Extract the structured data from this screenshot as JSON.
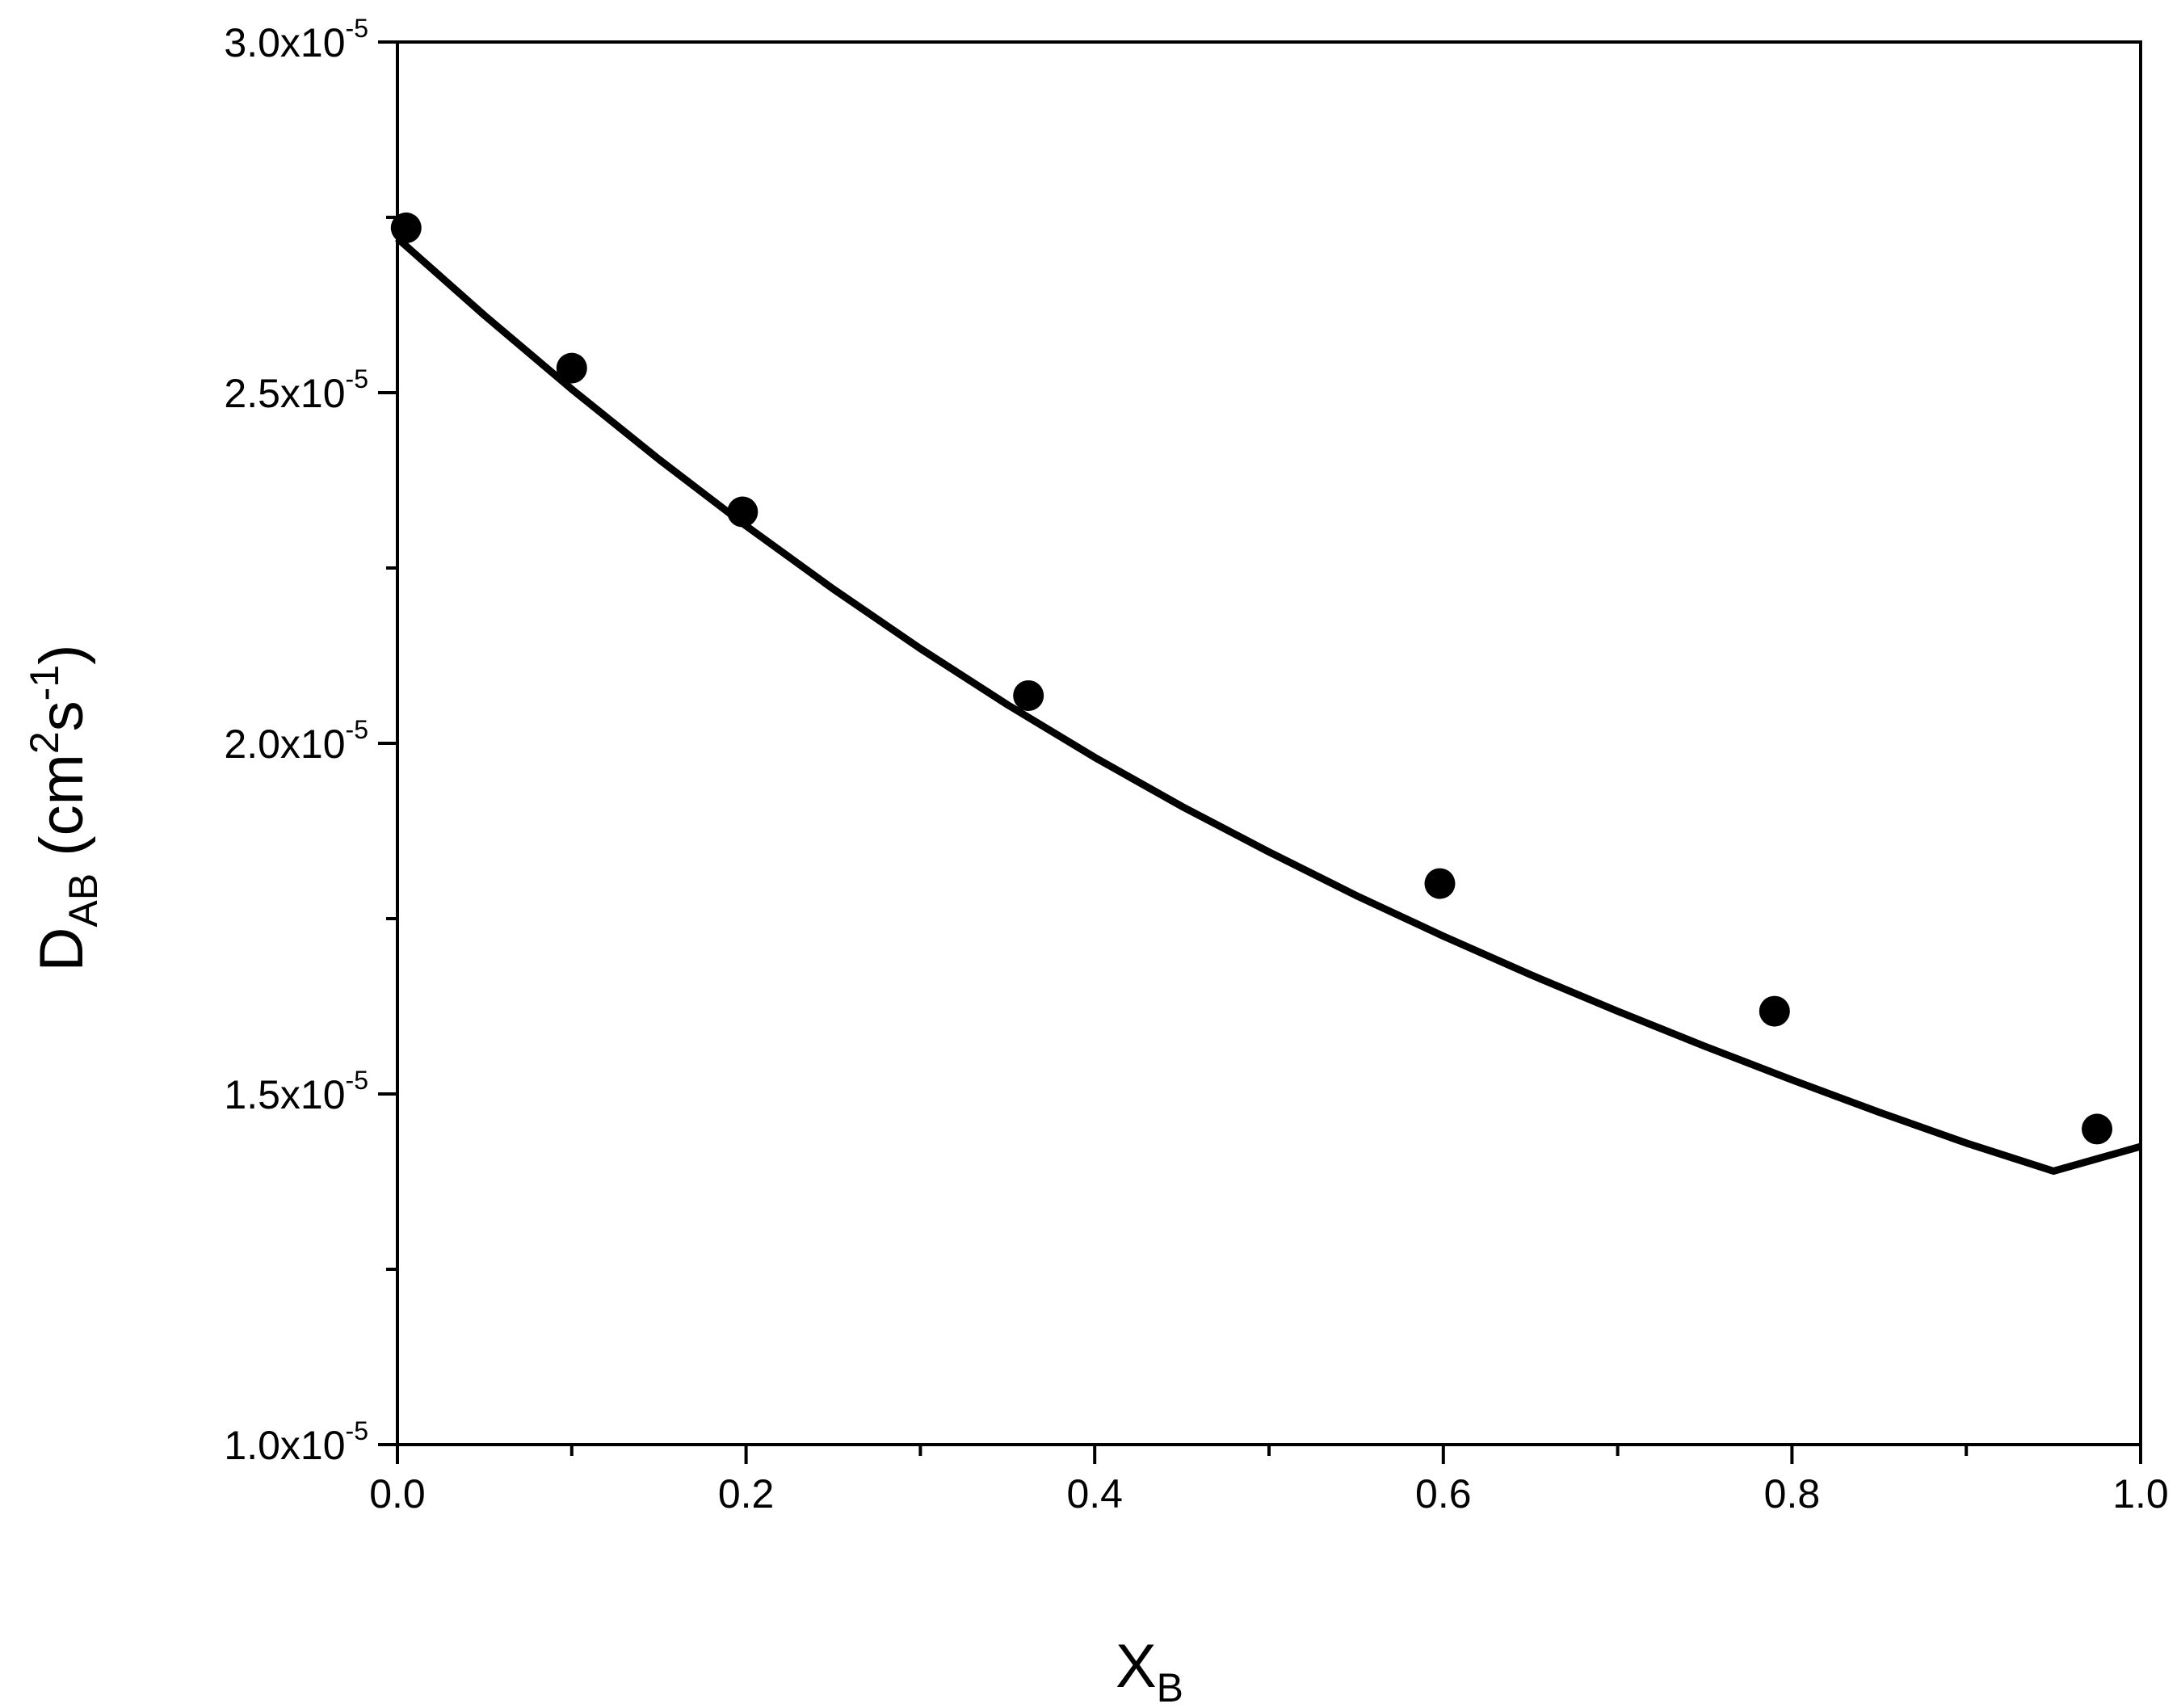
{
  "chart_data": {
    "type": "scatter",
    "xlabel": {
      "main": "X",
      "sub": "B"
    },
    "ylabel": {
      "main": "D",
      "sub": "AB",
      "unit_open": " (cm",
      "sup1": "2",
      "mid": "s",
      "sup2": "-1",
      "unit_close": ")"
    },
    "xlim": [
      0.0,
      1.0
    ],
    "ylim": [
      1e-05,
      3e-05
    ],
    "x_ticks": [
      {
        "value": 0.0,
        "label": "0.0"
      },
      {
        "value": 0.2,
        "label": "0.2"
      },
      {
        "value": 0.4,
        "label": "0.4"
      },
      {
        "value": 0.6,
        "label": "0.6"
      },
      {
        "value": 0.8,
        "label": "0.8"
      },
      {
        "value": 1.0,
        "label": "1.0"
      }
    ],
    "x_minor_ticks": [
      0.1,
      0.3,
      0.5,
      0.7,
      0.9
    ],
    "y_ticks": [
      {
        "value": 1e-05,
        "mantissa": "1.0x10",
        "exp": "-5"
      },
      {
        "value": 1.5e-05,
        "mantissa": "1.5x10",
        "exp": "-5"
      },
      {
        "value": 2e-05,
        "mantissa": "2.0x10",
        "exp": "-5"
      },
      {
        "value": 2.5e-05,
        "mantissa": "2.5x10",
        "exp": "-5"
      },
      {
        "value": 3e-05,
        "mantissa": "3.0x10",
        "exp": "-5"
      }
    ],
    "y_minor_ticks": [
      1.25e-05,
      1.75e-05,
      2.25e-05,
      2.75e-05
    ],
    "grid": false,
    "legend": "none",
    "series": [
      {
        "kind": "markers",
        "marker": "filled-circle",
        "color": "#000000",
        "x": [
          0.005,
          0.1,
          0.198,
          0.362,
          0.598,
          0.79,
          0.975
        ],
        "y": [
          2.735e-05,
          2.535e-05,
          2.33e-05,
          2.068e-05,
          1.8e-05,
          1.618e-05,
          1.45e-05
        ]
      },
      {
        "kind": "line",
        "color": "#000000",
        "x": [
          0.0,
          0.05,
          0.1,
          0.15,
          0.2,
          0.25,
          0.3,
          0.35,
          0.4,
          0.45,
          0.5,
          0.55,
          0.6,
          0.65,
          0.7,
          0.75,
          0.8,
          0.85,
          0.9,
          0.95,
          1.0
        ],
        "y": [
          2.72e-05,
          2.61e-05,
          2.505e-05,
          2.405e-05,
          2.31e-05,
          2.22e-05,
          2.135e-05,
          2.055e-05,
          1.98e-05,
          1.91e-05,
          1.845e-05,
          1.783e-05,
          1.725e-05,
          1.67e-05,
          1.618e-05,
          1.568e-05,
          1.52e-05,
          1.474e-05,
          1.43e-05,
          1.39e-05,
          1.425e-05
        ]
      }
    ]
  }
}
